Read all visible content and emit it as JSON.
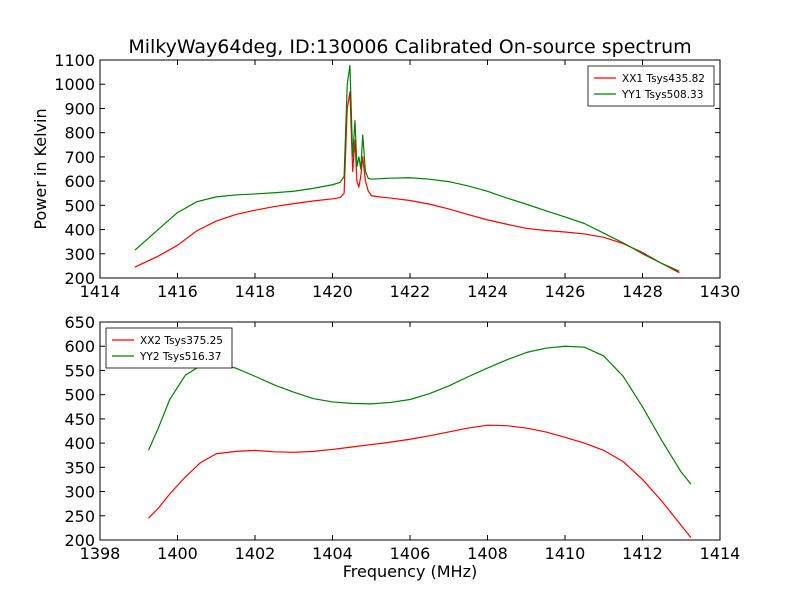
{
  "figure": {
    "title": "MilkyWay64deg, ID:130006 Calibrated On-source spectrum"
  },
  "colors": {
    "red": "#ff0000",
    "green": "#008000",
    "axis": "#000000",
    "background": "#ffffff"
  },
  "chart_data": [
    {
      "type": "line",
      "title": "MilkyWay64deg, ID:130006 Calibrated On-source spectrum",
      "xlabel": "",
      "ylabel": "Power in Kelvin",
      "xlim": [
        1414,
        1430
      ],
      "ylim": [
        200,
        1100
      ],
      "xticks": [
        1414,
        1416,
        1418,
        1420,
        1422,
        1424,
        1426,
        1428,
        1430
      ],
      "yticks": [
        200,
        300,
        400,
        500,
        600,
        700,
        800,
        900,
        1000,
        1100
      ],
      "legend_position": "top-right",
      "grid": false,
      "series": [
        {
          "name": "XX1 Tsys435.82",
          "color": "#ff0000",
          "x": [
            1414.9,
            1415.5,
            1416.0,
            1416.5,
            1417.0,
            1417.5,
            1418.0,
            1418.5,
            1419.0,
            1419.5,
            1420.0,
            1420.2,
            1420.3,
            1420.38,
            1420.45,
            1420.52,
            1420.58,
            1420.63,
            1420.68,
            1420.73,
            1420.78,
            1420.85,
            1420.92,
            1421.0,
            1421.2,
            1421.5,
            1422.0,
            1422.5,
            1423.0,
            1423.5,
            1424.0,
            1424.5,
            1425.0,
            1425.5,
            1426.0,
            1426.5,
            1427.0,
            1427.5,
            1428.0,
            1428.5,
            1428.95
          ],
          "y": [
            245,
            290,
            335,
            395,
            435,
            462,
            480,
            495,
            507,
            518,
            527,
            532,
            550,
            900,
            968,
            640,
            770,
            600,
            575,
            620,
            700,
            600,
            560,
            540,
            535,
            530,
            520,
            505,
            485,
            462,
            440,
            422,
            405,
            396,
            390,
            382,
            368,
            342,
            305,
            260,
            222
          ]
        },
        {
          "name": "YY1 Tsys508.33",
          "color": "#008000",
          "x": [
            1414.9,
            1415.5,
            1416.0,
            1416.5,
            1417.0,
            1417.5,
            1418.0,
            1418.5,
            1419.0,
            1419.5,
            1420.0,
            1420.2,
            1420.3,
            1420.38,
            1420.45,
            1420.52,
            1420.58,
            1420.63,
            1420.68,
            1420.73,
            1420.78,
            1420.85,
            1420.92,
            1421.0,
            1421.2,
            1421.5,
            1422.0,
            1422.5,
            1423.0,
            1423.5,
            1424.0,
            1424.5,
            1425.0,
            1425.5,
            1426.0,
            1426.5,
            1427.0,
            1427.5,
            1428.0,
            1428.5,
            1428.95
          ],
          "y": [
            315,
            400,
            470,
            515,
            535,
            543,
            547,
            552,
            558,
            570,
            585,
            595,
            620,
            1000,
            1078,
            700,
            850,
            660,
            700,
            650,
            790,
            640,
            612,
            608,
            610,
            612,
            614,
            608,
            598,
            580,
            558,
            530,
            505,
            478,
            452,
            425,
            385,
            345,
            300,
            260,
            228
          ]
        }
      ]
    },
    {
      "type": "line",
      "title": "",
      "xlabel": "Frequency (MHz)",
      "ylabel": "",
      "xlim": [
        1398,
        1414
      ],
      "ylim": [
        200,
        650
      ],
      "xticks": [
        1398,
        1400,
        1402,
        1404,
        1406,
        1408,
        1410,
        1412,
        1414
      ],
      "yticks": [
        200,
        250,
        300,
        350,
        400,
        450,
        500,
        550,
        600,
        650
      ],
      "legend_position": "top-left",
      "grid": false,
      "series": [
        {
          "name": "XX2 Tsys375.25",
          "color": "#ff0000",
          "x": [
            1399.25,
            1399.5,
            1399.8,
            1400.2,
            1400.6,
            1401.0,
            1401.5,
            1402.0,
            1402.5,
            1403.0,
            1403.5,
            1404.0,
            1404.5,
            1405.0,
            1405.5,
            1406.0,
            1406.5,
            1407.0,
            1407.5,
            1408.0,
            1408.5,
            1409.0,
            1409.5,
            1410.0,
            1410.5,
            1411.0,
            1411.5,
            1412.0,
            1412.5,
            1413.0,
            1413.25
          ],
          "y": [
            245,
            265,
            295,
            330,
            360,
            378,
            383,
            385,
            382,
            381,
            383,
            387,
            392,
            397,
            402,
            408,
            415,
            423,
            431,
            437,
            436,
            431,
            423,
            412,
            400,
            385,
            362,
            325,
            280,
            230,
            205
          ]
        },
        {
          "name": "YY2 Tsys516.37",
          "color": "#008000",
          "x": [
            1399.25,
            1399.5,
            1399.8,
            1400.2,
            1400.6,
            1401.0,
            1401.5,
            1402.0,
            1402.5,
            1403.0,
            1403.5,
            1404.0,
            1404.5,
            1405.0,
            1405.5,
            1406.0,
            1406.5,
            1407.0,
            1407.5,
            1408.0,
            1408.5,
            1409.0,
            1409.5,
            1410.0,
            1410.5,
            1411.0,
            1411.5,
            1412.0,
            1412.5,
            1413.0,
            1413.25
          ],
          "y": [
            385,
            430,
            490,
            540,
            560,
            563,
            555,
            538,
            520,
            505,
            492,
            485,
            482,
            481,
            484,
            490,
            502,
            518,
            537,
            555,
            572,
            587,
            596,
            600,
            598,
            580,
            538,
            475,
            405,
            340,
            315
          ]
        }
      ]
    }
  ]
}
